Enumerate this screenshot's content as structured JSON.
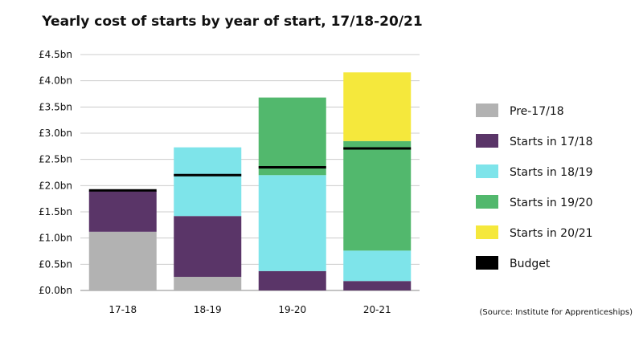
{
  "chart_data": {
    "type": "bar",
    "stacked": true,
    "title": "Yearly cost of starts by year of start, 17/18-20/21",
    "xlabel": "",
    "ylabel": "",
    "categories": [
      "17-18",
      "18-19",
      "19-20",
      "20-21"
    ],
    "ylim": [
      0,
      4.5
    ],
    "yticks": [
      "£0.0bn",
      "£0.5bn",
      "£1.0bn",
      "£1.5bn",
      "£2.0bn",
      "£2.5bn",
      "£3.0bn",
      "£3.5bn",
      "£4.0bn",
      "£4.5bn"
    ],
    "grid": true,
    "legend_position": "right",
    "series": [
      {
        "name": "Pre-17/18",
        "color": "#b2b2b2",
        "values": [
          1.12,
          0.26,
          0,
          0
        ]
      },
      {
        "name": "Starts in 17/18",
        "color": "#5a3568",
        "values": [
          0.78,
          1.16,
          0.37,
          0.18
        ]
      },
      {
        "name": "Starts in 18/19",
        "color": "#7ee4ea",
        "values": [
          0,
          1.31,
          1.83,
          0.58
        ]
      },
      {
        "name": "Starts in 19/20",
        "color": "#52b86d",
        "values": [
          0,
          0,
          1.48,
          2.09
        ]
      },
      {
        "name": "Starts in 20/21",
        "color": "#f5e83c",
        "values": [
          0,
          0,
          0,
          1.31
        ]
      }
    ],
    "budget": {
      "name": "Budget",
      "color": "#000000",
      "values": [
        1.91,
        2.2,
        2.35,
        2.71
      ]
    },
    "source": "(Source: Institute for Apprenticeships)"
  }
}
